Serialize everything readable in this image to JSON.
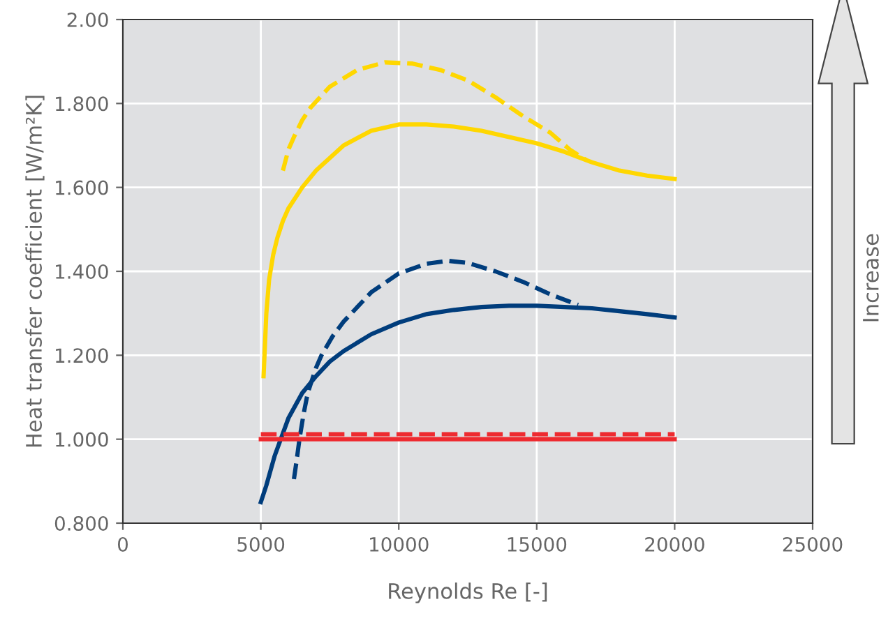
{
  "chart_data": {
    "type": "line",
    "xlabel": "Reynolds Re [-]",
    "ylabel": "Heat transfer coefficient [W/m²K]",
    "xlim": [
      0,
      25000
    ],
    "xticks": [
      0,
      5000,
      10000,
      15000,
      20000,
      25000
    ],
    "ylim": [
      0.8,
      2.0
    ],
    "yticks": [
      {
        "value": 0.8,
        "label": "0.800"
      },
      {
        "value": 1.0,
        "label": "1.000"
      },
      {
        "value": 1.2,
        "label": "1.200"
      },
      {
        "value": 1.4,
        "label": "1.400"
      },
      {
        "value": 1.6,
        "label": "1.600"
      },
      {
        "value": 1.8,
        "label": "1.800"
      },
      {
        "value": 2.0,
        "label": "2.00"
      }
    ],
    "grid": true,
    "annotations": [
      "Increase"
    ],
    "series": [
      {
        "color": "#ffd700",
        "line_style": "solid",
        "x": [
          5100,
          5200,
          5300,
          5450,
          5600,
          5800,
          6000,
          6500,
          7000,
          8000,
          9000,
          10000,
          11000,
          12000,
          13000,
          14000,
          15000,
          16000,
          17000,
          18000,
          19000,
          20000
        ],
        "values": [
          1.15,
          1.3,
          1.38,
          1.44,
          1.48,
          1.52,
          1.55,
          1.6,
          1.64,
          1.7,
          1.735,
          1.75,
          1.75,
          1.745,
          1.735,
          1.72,
          1.705,
          1.685,
          1.66,
          1.64,
          1.628,
          1.62
        ]
      },
      {
        "color": "#ffd700",
        "line_style": "dashed",
        "x": [
          5800,
          6000,
          6200,
          6500,
          6800,
          7500,
          8500,
          9500,
          10500,
          11500,
          12500,
          13500,
          14500,
          15500,
          16200,
          16800
        ],
        "values": [
          1.64,
          1.69,
          1.72,
          1.76,
          1.79,
          1.84,
          1.88,
          1.898,
          1.895,
          1.88,
          1.855,
          1.815,
          1.77,
          1.73,
          1.69,
          1.665
        ]
      },
      {
        "color": "#003d7c",
        "line_style": "solid",
        "x": [
          5000,
          5200,
          5500,
          6000,
          6500,
          7000,
          7500,
          8000,
          9000,
          10000,
          11000,
          12000,
          13000,
          14000,
          15000,
          16000,
          17000,
          18000,
          19000,
          20000
        ],
        "values": [
          0.85,
          0.89,
          0.96,
          1.05,
          1.11,
          1.15,
          1.185,
          1.21,
          1.25,
          1.278,
          1.298,
          1.308,
          1.315,
          1.318,
          1.318,
          1.315,
          1.312,
          1.305,
          1.298,
          1.29
        ]
      },
      {
        "color": "#003d7c",
        "line_style": "dashed",
        "x": [
          6200,
          6300,
          6400,
          6550,
          6700,
          7000,
          7200,
          7600,
          8000,
          9000,
          10000,
          11000,
          11800,
          12500,
          13500,
          14500,
          15500,
          16500
        ],
        "values": [
          0.905,
          0.95,
          1.0,
          1.06,
          1.11,
          1.17,
          1.2,
          1.245,
          1.28,
          1.35,
          1.395,
          1.418,
          1.425,
          1.42,
          1.4,
          1.375,
          1.345,
          1.32
        ]
      },
      {
        "color": "#ee2a2f",
        "line_style": "solid",
        "x": [
          5000,
          20000
        ],
        "values": [
          1.0,
          1.0
        ]
      },
      {
        "color": "#ee2a2f",
        "line_style": "dashed",
        "x": [
          5000,
          20000
        ],
        "values": [
          1.012,
          1.012
        ]
      }
    ]
  }
}
